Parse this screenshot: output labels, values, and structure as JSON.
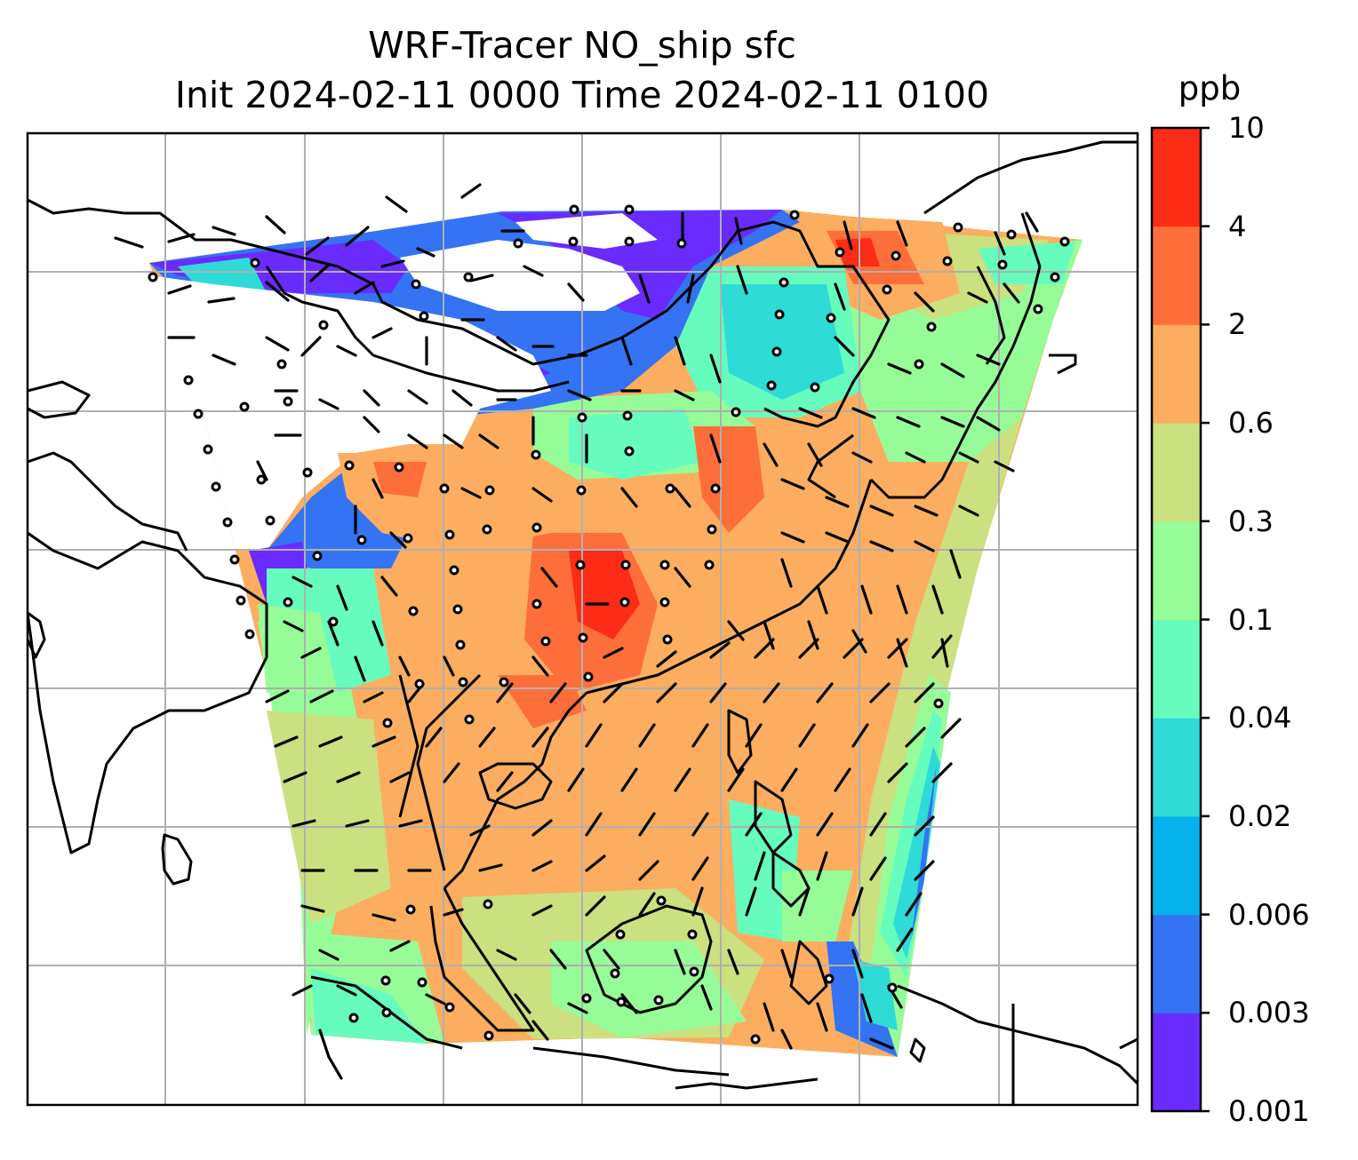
{
  "title_line1": "WRF-Tracer NO_ship sfc",
  "title_line2": "Init 2024-02-11 0000 Time 2024-02-11 0100",
  "colorbar": {
    "unit": "ppb",
    "tick_labels": [
      "0.001",
      "0.003",
      "0.006",
      "0.02",
      "0.04",
      "0.1",
      "0.3",
      "0.6",
      "2",
      "4",
      "10"
    ],
    "colors": [
      "#6a2bff",
      "#3473f4",
      "#05b2ec",
      "#2edbd7",
      "#66fcbe",
      "#96fc98",
      "#cbe07f",
      "#fcad5f",
      "#fd6e3a",
      "#fc2c16"
    ]
  },
  "map": {
    "coastline_color": "#000000",
    "gridline_color": "#b0b0b0",
    "wind_barbs": true
  }
}
